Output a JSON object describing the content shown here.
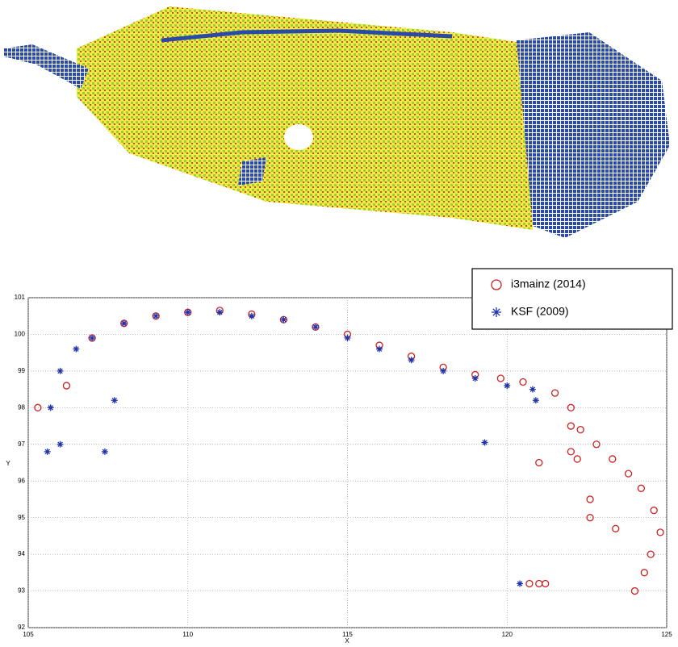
{
  "chart_data": {
    "type": "scatter",
    "xlabel": "X",
    "ylabel": "Y",
    "xlim": [
      105,
      125
    ],
    "ylim": [
      92,
      101
    ],
    "xticks": [
      105,
      110,
      115,
      120,
      125
    ],
    "yticks": [
      92,
      93,
      94,
      95,
      96,
      97,
      98,
      99,
      100,
      101
    ],
    "grid": true,
    "legend": "upper right",
    "series": [
      {
        "name": "i3mainz (2014)",
        "color": "#cc2222",
        "marker": "circle",
        "x": [
          105.3,
          106.2,
          107,
          108,
          109,
          110,
          111,
          112,
          113,
          114,
          115,
          116,
          117,
          118,
          119,
          119.8,
          120.5,
          121.5,
          122,
          122,
          122.3,
          122.8,
          123.3,
          123.8,
          124.2,
          124.6,
          124.8,
          124.5,
          124.3,
          124,
          122,
          122.2,
          121,
          122.6,
          122.6,
          123.4,
          120.7,
          121,
          121.2
        ],
        "values": [
          98,
          98.6,
          99.9,
          100.3,
          100.5,
          100.6,
          100.65,
          100.55,
          100.4,
          100.2,
          100,
          99.7,
          99.4,
          99.1,
          98.9,
          98.8,
          98.7,
          98.4,
          98,
          97.5,
          97.4,
          97,
          96.6,
          96.2,
          95.8,
          95.2,
          94.6,
          94,
          93.5,
          93,
          96.8,
          96.6,
          96.5,
          95.5,
          95,
          94.7,
          93.2,
          93.2,
          93.2
        ]
      },
      {
        "name": "KSF (2009)",
        "color": "#2233aa",
        "marker": "star",
        "x": [
          105.6,
          105.7,
          106,
          106.5,
          107,
          108,
          109,
          110,
          111,
          112,
          113,
          114,
          115,
          116,
          117,
          118,
          119,
          120,
          120.8,
          107.7,
          107.4,
          106,
          119.3,
          120.4,
          120.9
        ],
        "values": [
          96.8,
          98,
          99,
          99.6,
          99.9,
          100.3,
          100.5,
          100.6,
          100.6,
          100.5,
          100.4,
          100.2,
          99.9,
          99.6,
          99.3,
          99,
          98.8,
          98.6,
          98.5,
          98.2,
          96.8,
          97,
          97.05,
          93.2,
          98.2
        ]
      }
    ]
  }
}
